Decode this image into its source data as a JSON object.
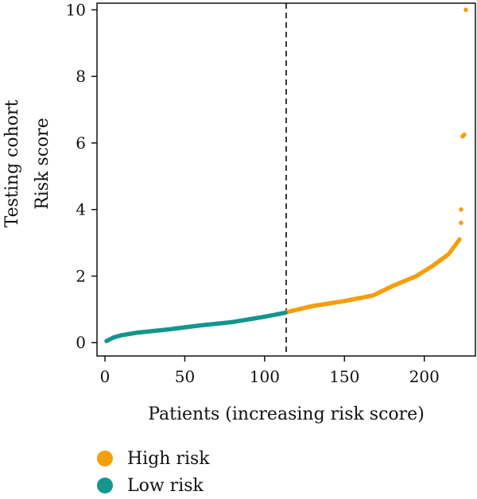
{
  "chart_data": {
    "type": "scatter",
    "title": "",
    "xlabel": "Patients (increasing risk score)",
    "ylabel_lines": [
      "Testing cohort",
      "Risk score"
    ],
    "xlim": [
      -5,
      232
    ],
    "ylim": [
      -0.4,
      10.2
    ],
    "xticks": [
      0,
      50,
      100,
      150,
      200
    ],
    "yticks": [
      0,
      2,
      4,
      6,
      8,
      10
    ],
    "cutoff_x": 113.5,
    "grid": false,
    "legend_position": "bottom-left",
    "series": [
      {
        "name": "High risk",
        "color": "#F59E0B",
        "anchors": [
          [
            114,
            0.92
          ],
          [
            130,
            1.1
          ],
          [
            150,
            1.25
          ],
          [
            168,
            1.42
          ],
          [
            180,
            1.7
          ],
          [
            195,
            2.0
          ],
          [
            205,
            2.3
          ],
          [
            215,
            2.65
          ],
          [
            219,
            2.9
          ],
          [
            222,
            3.1
          ]
        ],
        "x_range": [
          114,
          222
        ],
        "extra_points": [
          [
            223,
            3.6
          ],
          [
            223,
            4.0
          ],
          [
            224,
            6.2
          ],
          [
            225,
            6.25
          ],
          [
            226,
            10.0
          ]
        ]
      },
      {
        "name": "Low risk",
        "color": "#14958F",
        "anchors": [
          [
            1,
            0.05
          ],
          [
            5,
            0.15
          ],
          [
            10,
            0.22
          ],
          [
            20,
            0.3
          ],
          [
            40,
            0.4
          ],
          [
            60,
            0.52
          ],
          [
            80,
            0.62
          ],
          [
            100,
            0.78
          ],
          [
            113,
            0.9
          ]
        ],
        "x_range": [
          1,
          113
        ],
        "extra_points": []
      }
    ]
  },
  "legend": {
    "items": [
      {
        "label": "High risk",
        "color": "#F59E0B"
      },
      {
        "label": "Low risk",
        "color": "#14958F"
      }
    ]
  }
}
